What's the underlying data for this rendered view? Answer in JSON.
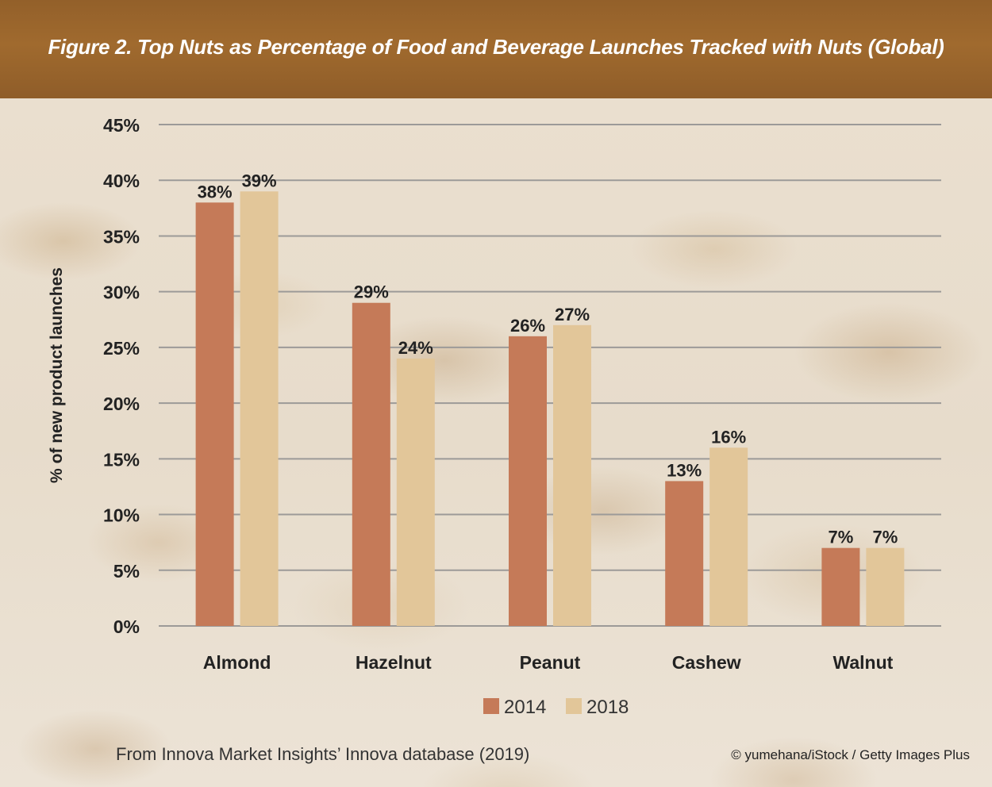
{
  "header": {
    "title": "Figure 2. Top Nuts as Percentage of Food and Beverage Launches Tracked with Nuts (Global)"
  },
  "footer": {
    "source": "From Innova Market Insights’ Innova database (2019)",
    "credit": "© yumehana/iStock / Getty Images Plus"
  },
  "chart_data": {
    "type": "bar",
    "title": "Figure 2. Top Nuts as Percentage of Food and Beverage Launches Tracked with Nuts (Global)",
    "categories": [
      "Almond",
      "Hazelnut",
      "Peanut",
      "Cashew",
      "Walnut"
    ],
    "series": [
      {
        "name": "2014",
        "color": "#c57a58",
        "values": [
          38,
          29,
          26,
          13,
          7
        ],
        "labels": [
          "38%",
          "29%",
          "26%",
          "13%",
          "7%"
        ]
      },
      {
        "name": "2018",
        "color": "#e2c699",
        "values": [
          39,
          24,
          27,
          16,
          7
        ],
        "labels": [
          "39%",
          "24%",
          "27%",
          "16%",
          "7%"
        ]
      }
    ],
    "xlabel": "",
    "ylabel": "% of new product launches",
    "ylim": [
      0,
      45
    ],
    "yticks": [
      "0%",
      "5%",
      "10%",
      "15%",
      "20%",
      "25%",
      "30%",
      "35%",
      "40%",
      "45%"
    ],
    "grid": true,
    "legend": "bottom-center"
  }
}
